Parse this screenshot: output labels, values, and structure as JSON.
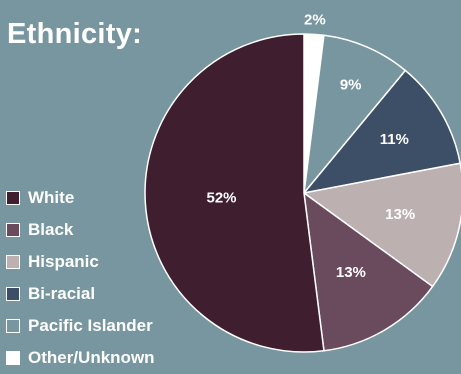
{
  "chart_data": {
    "type": "pie",
    "title": "Ethnicity:",
    "slices": [
      {
        "name": "Other/Unknown",
        "value": 2,
        "label": "2%",
        "color": "#ffffff"
      },
      {
        "name": "Pacific Islander",
        "value": 9,
        "label": "9%",
        "color": "#7896a0"
      },
      {
        "name": "Bi-racial",
        "value": 11,
        "label": "11%",
        "color": "#3d4f66"
      },
      {
        "name": "Hispanic",
        "value": 13,
        "label": "13%",
        "color": "#bcb0b1"
      },
      {
        "name": "Black",
        "value": 13,
        "label": "13%",
        "color": "#6a4b5d"
      },
      {
        "name": "White",
        "value": 52,
        "label": "52%",
        "color": "#3f1e2f"
      }
    ],
    "legend": {
      "placement": "left",
      "items": [
        {
          "label": "White",
          "color": "#3f1e2f"
        },
        {
          "label": "Black",
          "color": "#6a4b5d"
        },
        {
          "label": "Hispanic",
          "color": "#bcb0b1"
        },
        {
          "label": "Bi-racial",
          "color": "#3d4f66"
        },
        {
          "label": "Pacific Islander",
          "color": "#7896a0"
        },
        {
          "label": "Other/Unknown",
          "color": "#ffffff"
        }
      ]
    }
  }
}
